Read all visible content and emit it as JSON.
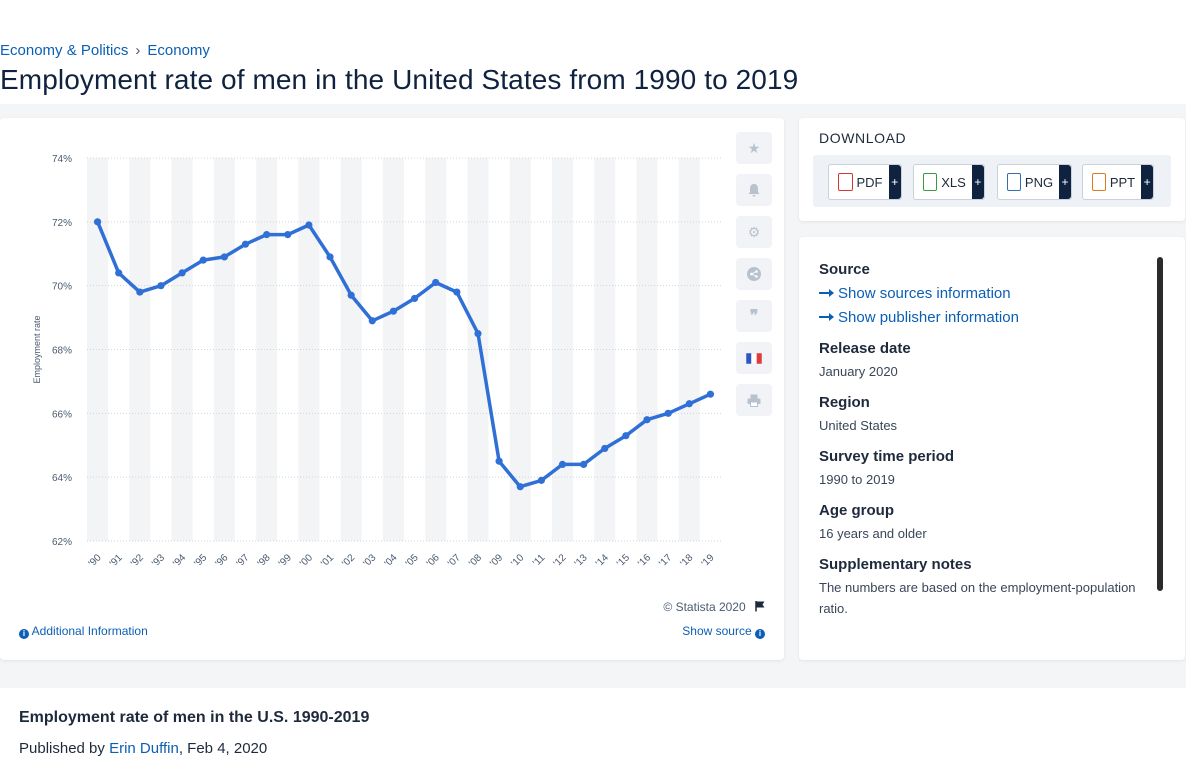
{
  "breadcrumb": {
    "item1": "Economy & Politics",
    "separator": "›",
    "item2": "Economy"
  },
  "page_title": "Employment rate of men in the United States from 1990 to 2019",
  "toolbar": {
    "icons": [
      "star-icon",
      "bell-icon",
      "gear-icon",
      "share-icon",
      "quote-icon",
      "french-flag-icon",
      "print-icon"
    ]
  },
  "chart_footer": {
    "copyright": "© Statista 2020",
    "additional_info": "Additional Information",
    "show_source": "Show source"
  },
  "download": {
    "title": "DOWNLOAD",
    "buttons": [
      {
        "label": "PDF",
        "plus": "+",
        "icon": "pdf-file-icon",
        "color": "#d9342b"
      },
      {
        "label": "XLS",
        "plus": "+",
        "icon": "xls-file-icon",
        "color": "#3a9a3f"
      },
      {
        "label": "PNG",
        "plus": "+",
        "icon": "png-file-icon",
        "color": "#2f6fb7"
      },
      {
        "label": "PPT",
        "plus": "+",
        "icon": "ppt-file-icon",
        "color": "#e07a1f"
      }
    ]
  },
  "meta": {
    "source_label": "Source",
    "show_sources": "Show sources information",
    "show_publisher": "Show publisher information",
    "release_label": "Release date",
    "release_value": "January 2020",
    "region_label": "Region",
    "region_value": "United States",
    "period_label": "Survey time period",
    "period_value": "1990 to 2019",
    "age_label": "Age group",
    "age_value": "16 years and older",
    "notes_label": "Supplementary notes",
    "notes_value": "The numbers are based on the employment-population ratio."
  },
  "bottom": {
    "title": "Employment rate of men in the U.S. 1990-2019",
    "published_prefix": "Published by",
    "author": "Erin Duffin",
    "date": ", Feb 4, 2020"
  },
  "chart_data": {
    "type": "line",
    "categories": [
      "'90",
      "'91",
      "'92",
      "'93",
      "'94",
      "'95",
      "'96",
      "'97",
      "'98",
      "'99",
      "'00",
      "'01",
      "'02",
      "'03",
      "'04",
      "'05",
      "'06",
      "'07",
      "'08",
      "'09",
      "'10",
      "'11",
      "'12",
      "'13",
      "'14",
      "'15",
      "'16",
      "'17",
      "'18",
      "'19"
    ],
    "series": [
      {
        "values": [
          72.0,
          70.4,
          69.8,
          70.0,
          70.4,
          70.8,
          70.9,
          71.3,
          71.6,
          71.6,
          71.9,
          70.9,
          69.7,
          68.9,
          69.2,
          69.6,
          70.1,
          69.8,
          68.5,
          64.5,
          63.7,
          63.9,
          64.4,
          64.4,
          64.9,
          65.3,
          65.8,
          66.0,
          66.3,
          66.6
        ]
      }
    ],
    "ylabel": "Employment rate",
    "yticks": [
      "62%",
      "64%",
      "66%",
      "68%",
      "70%",
      "72%",
      "74%"
    ],
    "ylim": [
      62,
      74
    ],
    "line_color": "#2f6fd6",
    "grid": true
  }
}
